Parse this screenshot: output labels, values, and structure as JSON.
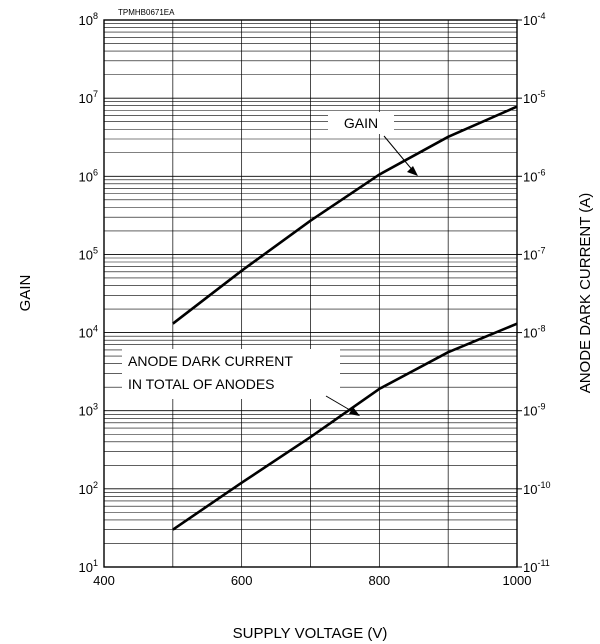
{
  "chart_data": {
    "type": "line",
    "figure_code": "TPMHB0671EA",
    "xlabel": "SUPPLY VOLTAGE (V)",
    "ylabel_left": "GAIN",
    "ylabel_right": "ANODE DARK CURRENT (A)",
    "xlim": [
      400,
      1000
    ],
    "x_scale": "linear",
    "x_ticks": [
      400,
      600,
      800,
      1000
    ],
    "ylim_left": [
      10,
      100000000
    ],
    "ylim_right": [
      1e-11,
      0.0001
    ],
    "y_scale": "log",
    "grid": true,
    "left_ticks": [
      {
        "base": "10",
        "exp": "1"
      },
      {
        "base": "10",
        "exp": "2"
      },
      {
        "base": "10",
        "exp": "3"
      },
      {
        "base": "10",
        "exp": "4"
      },
      {
        "base": "10",
        "exp": "5"
      },
      {
        "base": "10",
        "exp": "6"
      },
      {
        "base": "10",
        "exp": "7"
      },
      {
        "base": "10",
        "exp": "8"
      }
    ],
    "right_ticks": [
      {
        "base": "10",
        "exp": "-11"
      },
      {
        "base": "10",
        "exp": "-10"
      },
      {
        "base": "10",
        "exp": "-9"
      },
      {
        "base": "10",
        "exp": "-8"
      },
      {
        "base": "10",
        "exp": "-7"
      },
      {
        "base": "10",
        "exp": "-6"
      },
      {
        "base": "10",
        "exp": "-5"
      },
      {
        "base": "10",
        "exp": "-4"
      }
    ],
    "series": [
      {
        "name": "GAIN",
        "axis": "left",
        "x": [
          500,
          600,
          700,
          800,
          900,
          1000
        ],
        "y": [
          13000,
          62000,
          270000,
          1050000,
          3200000,
          7800000
        ]
      },
      {
        "name": "ANODE DARK CURRENT IN TOTAL OF ANODES",
        "axis": "right",
        "x": [
          500,
          600,
          700,
          800,
          900,
          1000
        ],
        "y": [
          3e-11,
          1.2e-10,
          4.6e-10,
          1.9e-09,
          5.6e-09,
          1.3e-08
        ]
      }
    ],
    "annotations": [
      {
        "text": "GAIN",
        "target": "GAIN"
      },
      {
        "lines": [
          "ANODE DARK CURRENT",
          "IN TOTAL OF ANODES"
        ],
        "target": "ANODE DARK CURRENT IN TOTAL OF ANODES"
      }
    ]
  }
}
